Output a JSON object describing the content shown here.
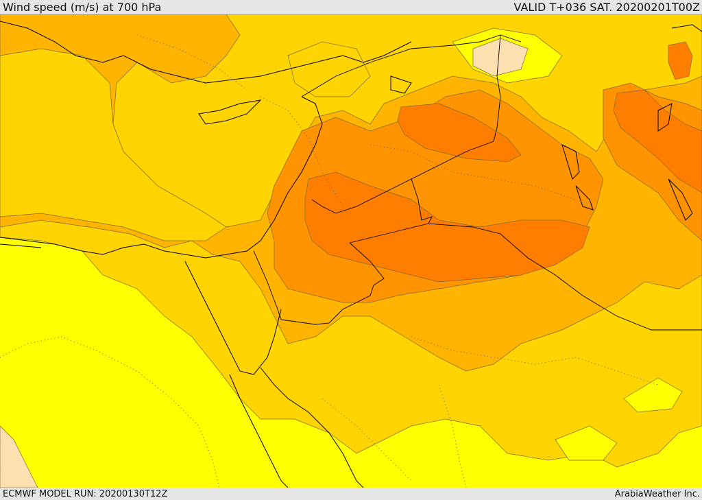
{
  "header": {
    "title": "Wind speed (m/s) at 700 hPa",
    "valid": "VALID T+036 SAT. 20200201T00Z"
  },
  "footer": {
    "model_run": "ECMWF MODEL RUN: 20200130T12Z",
    "credit": "ArabiaWeather Inc."
  },
  "colors": {
    "band_lowest": "#ffe0b0",
    "band_1": "#ffff00",
    "band_2": "#ffd400",
    "band_3": "#ffb400",
    "band_4": "#ff9400",
    "band_5": "#ff7e00",
    "contour": "#7a6a3a",
    "border": "#000000"
  }
}
